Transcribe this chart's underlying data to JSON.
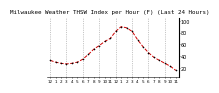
{
  "title": "Milwaukee Weather THSW Index per Hour (F) (Last 24 Hours)",
  "title_fontsize": 4.2,
  "bg_color": "#ffffff",
  "line_color": "#cc0000",
  "marker_color": "#000000",
  "grid_color": "#999999",
  "x_values": [
    0,
    1,
    2,
    3,
    4,
    5,
    6,
    7,
    8,
    9,
    10,
    11,
    12,
    13,
    14,
    15,
    16,
    17,
    18,
    19,
    20,
    21,
    22,
    23
  ],
  "y_values": [
    33,
    30,
    28,
    27,
    28,
    30,
    35,
    43,
    52,
    58,
    65,
    70,
    82,
    90,
    88,
    82,
    68,
    56,
    46,
    38,
    33,
    28,
    23,
    16
  ],
  "ylim": [
    5,
    105
  ],
  "xlim": [
    -0.5,
    23.5
  ],
  "yticks": [
    20,
    40,
    60,
    80,
    100
  ],
  "ytick_labels": [
    "20",
    "40",
    "60",
    "80",
    "100"
  ],
  "ytick_fontsize": 3.5,
  "xtick_fontsize": 3.0,
  "x_labels": [
    "12",
    "1",
    "2",
    "3",
    "4",
    "5",
    "6",
    "7",
    "8",
    "9",
    "10",
    "11",
    "12",
    "1",
    "2",
    "3",
    "4",
    "5",
    "6",
    "7",
    "8",
    "9",
    "10",
    "11"
  ],
  "grid_x_positions": [
    0,
    3,
    6,
    9,
    12,
    15,
    18,
    21
  ]
}
